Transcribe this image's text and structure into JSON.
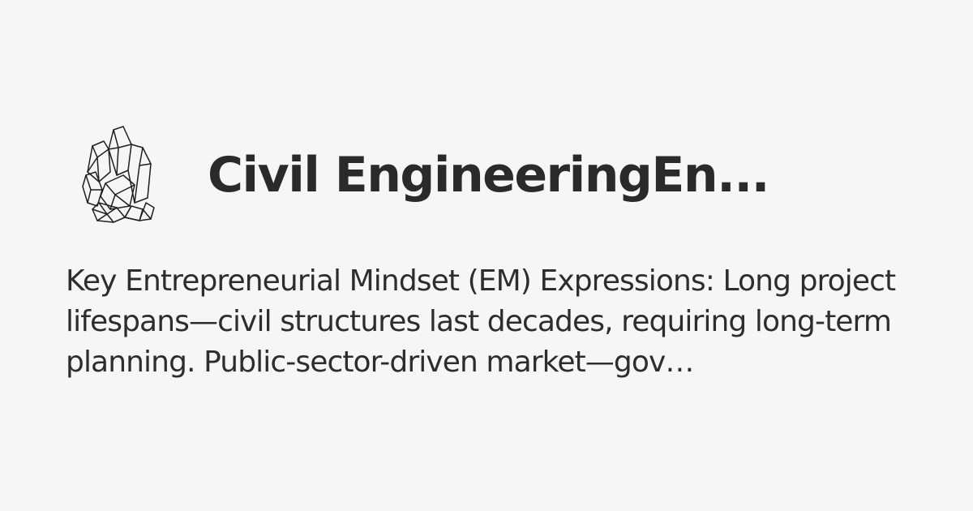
{
  "card": {
    "logo_icon": "crystal-cluster-icon",
    "title": "Civil EngineeringEn...",
    "description": "Key Entrepreneurial Mindset (EM) Expressions: Long project lifespans—civil structures last decades, requiring long-term planning. Public-sector-driven market—gov…"
  }
}
